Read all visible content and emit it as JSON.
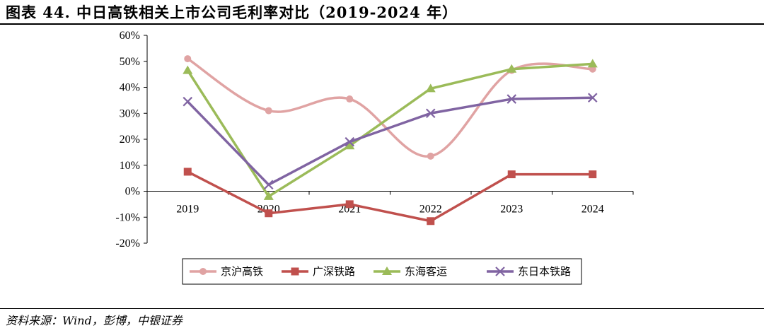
{
  "header": {
    "title": "图表 44. 中日高铁相关上市公司毛利率对比（2019-2024 年）"
  },
  "footer": {
    "source": "资料来源：Wind，彭博，中银证券"
  },
  "chart_data": {
    "type": "line",
    "title": "",
    "xlabel": "",
    "ylabel": "",
    "x": [
      "2019",
      "2020",
      "2021",
      "2022",
      "2023",
      "2024"
    ],
    "y_ticks": [
      "-20%",
      "-10%",
      "0%",
      "10%",
      "20%",
      "30%",
      "40%",
      "50%",
      "60%"
    ],
    "ylim": [
      -20,
      60
    ],
    "grid": false,
    "legend_position": "bottom",
    "series": [
      {
        "name": "京沪高铁",
        "values": [
          51,
          31,
          35.5,
          13.5,
          46.5,
          47
        ],
        "color": "#E0A3A3",
        "marker": "circle",
        "smooth": true
      },
      {
        "name": "广深铁路",
        "values": [
          7.5,
          -8.5,
          -5,
          -11.5,
          6.5,
          6.5
        ],
        "color": "#C0504D",
        "marker": "square",
        "smooth": false
      },
      {
        "name": "东海客运",
        "values": [
          46.5,
          -2,
          17.5,
          39.5,
          47,
          49
        ],
        "color": "#9BBB59",
        "marker": "triangle",
        "smooth": false
      },
      {
        "name": "东日本铁路",
        "values": [
          34.5,
          2.5,
          19,
          30,
          35.5,
          36
        ],
        "color": "#8064A2",
        "marker": "x",
        "smooth": false
      }
    ]
  }
}
